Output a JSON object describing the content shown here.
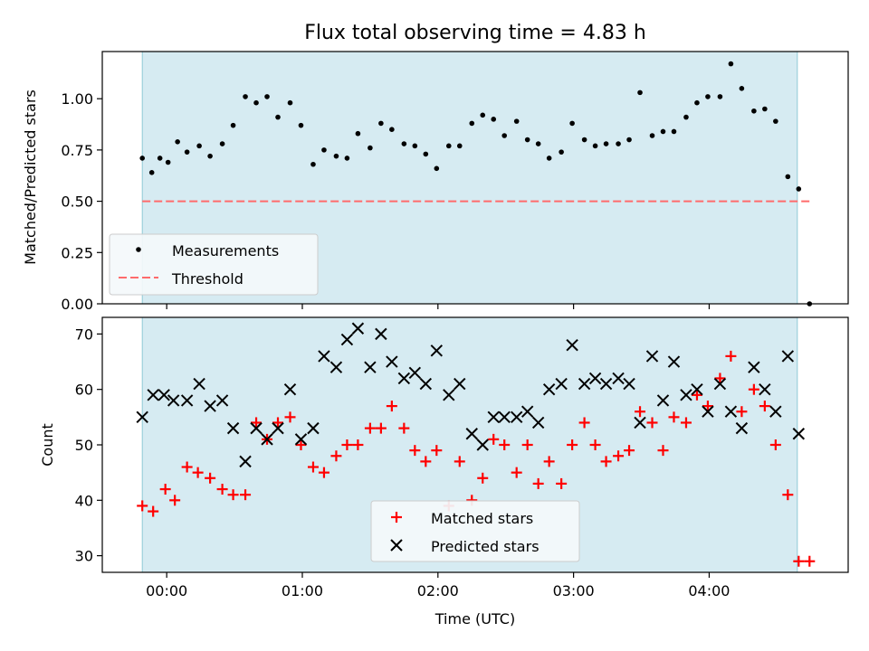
{
  "chart_data": [
    {
      "type": "scatter",
      "title": "Flux total observing time = 4.83 h",
      "xlabel": "",
      "ylabel": "Matched/Predicted stars",
      "xlim_hours": [
        -0.475,
        5.025
      ],
      "ylim": [
        0.0,
        1.23
      ],
      "yticks": [
        "0.00",
        "0.25",
        "0.50",
        "0.75",
        "1.00"
      ],
      "observing_window_hours": [
        -0.18,
        4.65
      ],
      "threshold": {
        "name": "Threshold",
        "value": 0.5,
        "x_range_hours": [
          -0.18,
          4.75
        ],
        "color": "#ff6b6b",
        "style": "dashed"
      },
      "grid": false,
      "legend": "lower-left",
      "series": [
        {
          "name": "Measurements",
          "color": "#000000",
          "marker": "dot",
          "x": [
            -0.18,
            -0.11,
            -0.05,
            0.01,
            0.08,
            0.15,
            0.24,
            0.32,
            0.41,
            0.49,
            0.58,
            0.66,
            0.74,
            0.82,
            0.91,
            0.99,
            1.08,
            1.16,
            1.25,
            1.33,
            1.41,
            1.5,
            1.58,
            1.66,
            1.75,
            1.83,
            1.91,
            1.99,
            2.08,
            2.16,
            2.25,
            2.33,
            2.41,
            2.49,
            2.58,
            2.66,
            2.74,
            2.82,
            2.91,
            2.99,
            3.08,
            3.16,
            3.24,
            3.33,
            3.41,
            3.49,
            3.58,
            3.66,
            3.74,
            3.83,
            3.91,
            3.99,
            4.08,
            4.16,
            4.24,
            4.33,
            4.41,
            4.49,
            4.58,
            4.66,
            4.74
          ],
          "y": [
            0.71,
            0.64,
            0.71,
            0.69,
            0.79,
            0.74,
            0.77,
            0.72,
            0.78,
            0.87,
            1.01,
            0.98,
            1.01,
            0.91,
            0.98,
            0.87,
            0.68,
            0.75,
            0.72,
            0.71,
            0.83,
            0.76,
            0.88,
            0.85,
            0.78,
            0.77,
            0.73,
            0.66,
            0.77,
            0.77,
            0.88,
            0.92,
            0.9,
            0.82,
            0.89,
            0.8,
            0.78,
            0.71,
            0.74,
            0.88,
            0.8,
            0.77,
            0.78,
            0.78,
            0.8,
            1.03,
            0.82,
            0.84,
            0.84,
            0.91,
            0.98,
            1.01,
            1.01,
            1.17,
            1.05,
            0.94,
            0.95,
            0.89,
            0.62,
            0.56,
            0.0
          ]
        }
      ]
    },
    {
      "type": "scatter",
      "title": "",
      "xlabel": "Time (UTC)",
      "ylabel": "Count",
      "xlim_hours": [
        -0.475,
        5.025
      ],
      "ylim": [
        27,
        73
      ],
      "yticks": [
        "30",
        "40",
        "50",
        "60",
        "70"
      ],
      "xticks": [
        "00:00",
        "01:00",
        "02:00",
        "03:00",
        "04:00"
      ],
      "observing_window_hours": [
        -0.18,
        4.65
      ],
      "grid": false,
      "legend": "lower-center",
      "series": [
        {
          "name": "Matched stars",
          "color": "#ff0000",
          "marker": "plus",
          "x": [
            -0.18,
            -0.1,
            -0.01,
            0.06,
            0.15,
            0.23,
            0.32,
            0.41,
            0.49,
            0.58,
            0.66,
            0.74,
            0.82,
            0.91,
            0.99,
            1.08,
            1.16,
            1.25,
            1.33,
            1.41,
            1.5,
            1.58,
            1.66,
            1.75,
            1.83,
            1.91,
            1.99,
            2.08,
            2.16,
            2.25,
            2.33,
            2.41,
            2.49,
            2.58,
            2.66,
            2.74,
            2.82,
            2.91,
            2.99,
            3.08,
            3.16,
            3.24,
            3.33,
            3.41,
            3.49,
            3.58,
            3.66,
            3.74,
            3.83,
            3.91,
            3.99,
            4.08,
            4.16,
            4.24,
            4.33,
            4.41,
            4.49,
            4.58,
            4.66,
            4.74
          ],
          "y": [
            39,
            38,
            42,
            40,
            46,
            45,
            44,
            42,
            41,
            41,
            54,
            51,
            54,
            55,
            50,
            46,
            45,
            48,
            50,
            50,
            53,
            53,
            57,
            53,
            49,
            47,
            49,
            39,
            47,
            40,
            44,
            51,
            50,
            45,
            50,
            43,
            47,
            43,
            50,
            54,
            50,
            47,
            48,
            49,
            56,
            54,
            49,
            55,
            54,
            59,
            57,
            62,
            66,
            56,
            60,
            57,
            50,
            41,
            29,
            29
          ]
        },
        {
          "name": "Predicted stars",
          "color": "#000000",
          "marker": "x",
          "x": [
            -0.18,
            -0.1,
            -0.02,
            0.05,
            0.15,
            0.24,
            0.32,
            0.41,
            0.49,
            0.58,
            0.66,
            0.74,
            0.82,
            0.91,
            0.99,
            1.08,
            1.16,
            1.25,
            1.33,
            1.41,
            1.5,
            1.58,
            1.66,
            1.75,
            1.83,
            1.91,
            1.99,
            2.08,
            2.16,
            2.25,
            2.33,
            2.41,
            2.49,
            2.58,
            2.66,
            2.74,
            2.82,
            2.91,
            2.99,
            3.08,
            3.16,
            3.24,
            3.33,
            3.41,
            3.49,
            3.58,
            3.66,
            3.74,
            3.83,
            3.91,
            3.99,
            4.08,
            4.16,
            4.24,
            4.33,
            4.41,
            4.49,
            4.58,
            4.66
          ],
          "y": [
            55,
            59,
            59,
            58,
            58,
            61,
            57,
            58,
            53,
            47,
            53,
            51,
            53,
            60,
            51,
            53,
            66,
            64,
            69,
            71,
            64,
            70,
            65,
            62,
            63,
            61,
            67,
            59,
            61,
            52,
            50,
            55,
            55,
            55,
            56,
            54,
            60,
            61,
            68,
            61,
            62,
            61,
            62,
            61,
            54,
            66,
            58,
            65,
            59,
            60,
            56,
            61,
            56,
            53,
            64,
            60,
            56,
            66,
            52
          ]
        }
      ]
    }
  ]
}
